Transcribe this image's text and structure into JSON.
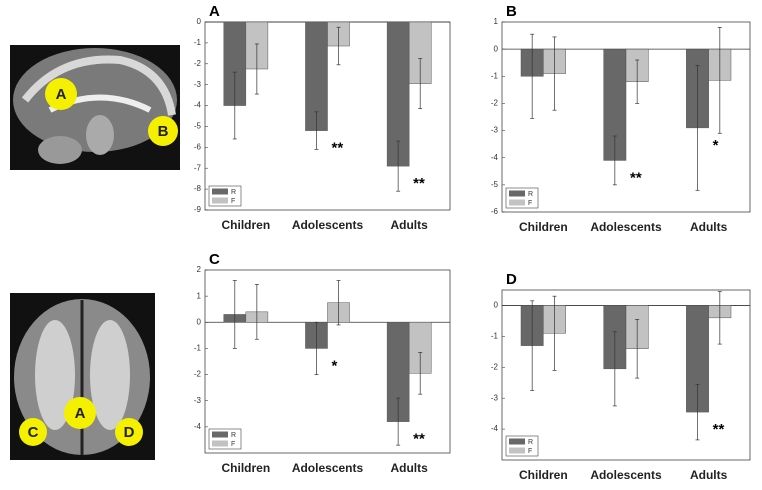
{
  "chart_data": [
    {
      "type": "bar",
      "title": "A",
      "categories": [
        "Children",
        "Adolescents",
        "Adults"
      ],
      "series": [
        {
          "name": "R",
          "color": "#686868",
          "values": [
            -4.0,
            -5.2,
            -6.9
          ],
          "errors": [
            1.6,
            0.9,
            1.2
          ]
        },
        {
          "name": "F",
          "color": "#c2c2c2",
          "values": [
            -2.25,
            -1.15,
            -2.95
          ],
          "errors": [
            1.2,
            0.9,
            1.2
          ]
        }
      ],
      "annotations": [
        null,
        "**",
        "**"
      ],
      "ylim": [
        -9,
        0
      ],
      "yticks": [
        0,
        -1,
        -2,
        -3,
        -4,
        -5,
        -6,
        -7,
        -8,
        -9
      ],
      "legend": "lower left"
    },
    {
      "type": "bar",
      "title": "B",
      "categories": [
        "Children",
        "Adolescents",
        "Adults"
      ],
      "series": [
        {
          "name": "R",
          "color": "#686868",
          "values": [
            -1.0,
            -4.1,
            -2.9
          ],
          "errors": [
            1.55,
            0.9,
            2.3
          ]
        },
        {
          "name": "F",
          "color": "#c2c2c2",
          "values": [
            -0.9,
            -1.2,
            -1.15
          ],
          "errors": [
            1.35,
            0.8,
            1.95
          ]
        }
      ],
      "annotations": [
        null,
        "**",
        "*"
      ],
      "ylim": [
        -6,
        1
      ],
      "yticks": [
        1,
        0,
        -1,
        -2,
        -3,
        -4,
        -5,
        -6
      ],
      "legend": "lower left"
    },
    {
      "type": "bar",
      "title": "C",
      "categories": [
        "Children",
        "Adolescents",
        "Adults"
      ],
      "series": [
        {
          "name": "R",
          "color": "#686868",
          "values": [
            0.3,
            -1.0,
            -3.8
          ],
          "errors": [
            1.3,
            1.0,
            0.9
          ]
        },
        {
          "name": "F",
          "color": "#c2c2c2",
          "values": [
            0.4,
            0.75,
            -1.95
          ],
          "errors": [
            1.05,
            0.85,
            0.8
          ]
        }
      ],
      "annotations": [
        null,
        "*",
        "**"
      ],
      "ylim": [
        -5,
        2
      ],
      "yticks": [
        2,
        1,
        0,
        -1,
        -2,
        -3,
        -4
      ],
      "legend": "lower left"
    },
    {
      "type": "bar",
      "title": "D",
      "categories": [
        "Children",
        "Adolescents",
        "Adults"
      ],
      "series": [
        {
          "name": "R",
          "color": "#686868",
          "values": [
            -1.3,
            -2.05,
            -3.45
          ],
          "errors": [
            1.45,
            1.2,
            0.9
          ]
        },
        {
          "name": "F",
          "color": "#c2c2c2",
          "values": [
            -0.9,
            -1.4,
            -0.4
          ],
          "errors": [
            1.2,
            0.95,
            0.85
          ]
        }
      ],
      "annotations": [
        null,
        null,
        "**"
      ],
      "ylim": [
        -5,
        0.5
      ],
      "yticks": [
        0,
        -1,
        -2,
        -3,
        -4
      ],
      "legend": "lower left"
    }
  ],
  "images": {
    "sagittal": [
      "A",
      "B"
    ],
    "axial": [
      "A",
      "C",
      "D"
    ]
  }
}
